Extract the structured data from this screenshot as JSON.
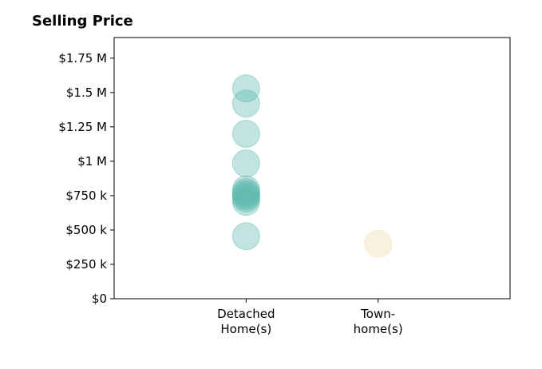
{
  "chart_data": {
    "type": "scatter",
    "title": "Selling Price",
    "xlabel": "",
    "ylabel": "",
    "categories": [
      [
        "Detached",
        "Home(s)"
      ],
      [
        "Town-",
        "home(s)"
      ]
    ],
    "ylim": [
      0,
      1900000
    ],
    "yticks": [
      {
        "value": 0,
        "label": "$0"
      },
      {
        "value": 250000,
        "label": "$250 k"
      },
      {
        "value": 500000,
        "label": "$500 k"
      },
      {
        "value": 750000,
        "label": "$750 k"
      },
      {
        "value": 1000000,
        "label": "$1 M"
      },
      {
        "value": 1250000,
        "label": "$1.25 M"
      },
      {
        "value": 1500000,
        "label": "$1.5 M"
      },
      {
        "value": 1750000,
        "label": "$1.75 M"
      }
    ],
    "grid": false,
    "series": [
      {
        "category": 0,
        "color": "#5bb8ad",
        "values": [
          1530000,
          1420000,
          1200000,
          985000,
          795000,
          775000,
          760000,
          745000,
          730000,
          705000,
          455000
        ]
      },
      {
        "category": 1,
        "color": "#f0d9a8",
        "values": [
          400000
        ]
      }
    ]
  }
}
